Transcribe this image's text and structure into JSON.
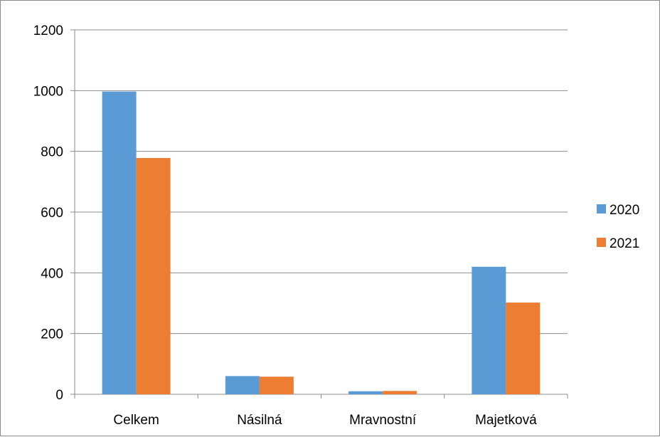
{
  "chart_data": {
    "type": "bar",
    "title": "",
    "xlabel": "",
    "ylabel": "",
    "categories": [
      "Celkem",
      "Násilná",
      "Mravnostní",
      "Majetková"
    ],
    "series": [
      {
        "name": "2020",
        "color": "#5b9bd5",
        "values": [
          997,
          60,
          10,
          420
        ]
      },
      {
        "name": "2021",
        "color": "#ed7d31",
        "values": [
          778,
          58,
          11,
          302
        ]
      }
    ],
    "ylim": [
      0,
      1200
    ],
    "yticks": [
      0,
      200,
      400,
      600,
      800,
      1000,
      1200
    ],
    "grid": true,
    "legend": "right"
  }
}
